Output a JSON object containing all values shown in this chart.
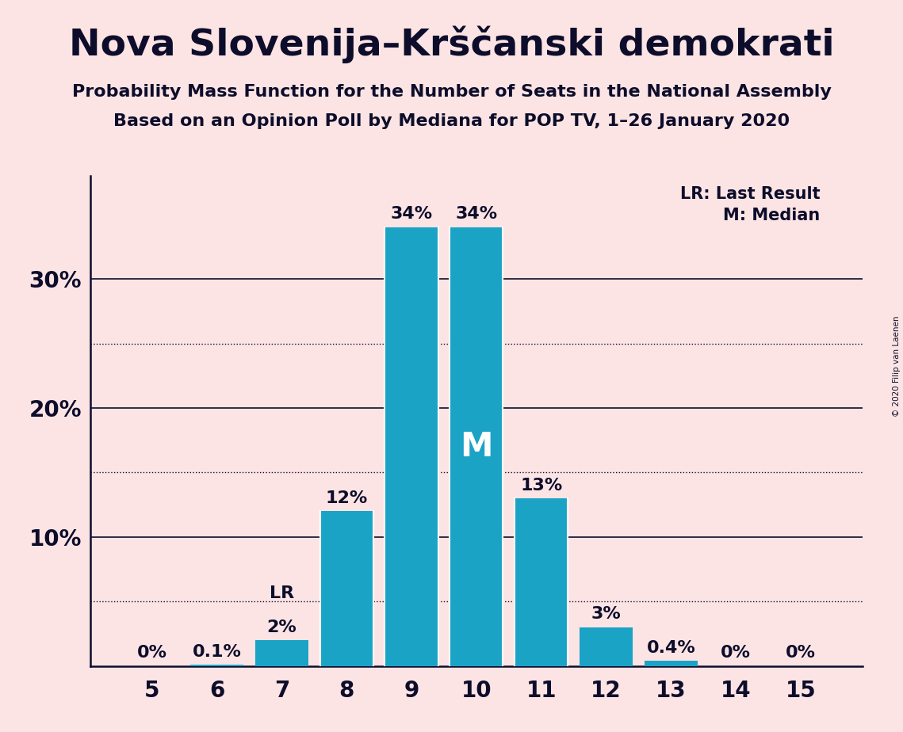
{
  "title": "Nova Slovenija–Krščanski demokrati",
  "subtitle1": "Probability Mass Function for the Number of Seats in the National Assembly",
  "subtitle2": "Based on an Opinion Poll by Mediana for POP TV, 1–26 January 2020",
  "copyright": "© 2020 Filip van Laenen",
  "categories": [
    5,
    6,
    7,
    8,
    9,
    10,
    11,
    12,
    13,
    14,
    15
  ],
  "values": [
    0.0,
    0.1,
    2.0,
    12.0,
    34.0,
    34.0,
    13.0,
    3.0,
    0.4,
    0.0,
    0.0
  ],
  "labels": [
    "0%",
    "0.1%",
    "2%",
    "12%",
    "34%",
    "34%",
    "13%",
    "3%",
    "0.4%",
    "0%",
    "0%"
  ],
  "bar_color": "#1ba3c6",
  "background_color": "#fce4e4",
  "text_color": "#0d0d2b",
  "lr_index": 2,
  "median_index": 5,
  "ylim": [
    0,
    38
  ],
  "yticks": [
    0,
    10,
    20,
    30
  ],
  "ytick_labels": [
    "",
    "10%",
    "20%",
    "30%"
  ],
  "dotted_lines": [
    5,
    15,
    25
  ],
  "legend_lr": "LR: Last Result",
  "legend_m": "M: Median",
  "title_fontsize": 34,
  "subtitle_fontsize": 16,
  "label_fontsize": 16,
  "axis_fontsize": 20,
  "lr_label_yoffset": 3.0,
  "bar_label_yoffset": 0.4,
  "m_fontsize": 30,
  "legend_fontsize": 15
}
